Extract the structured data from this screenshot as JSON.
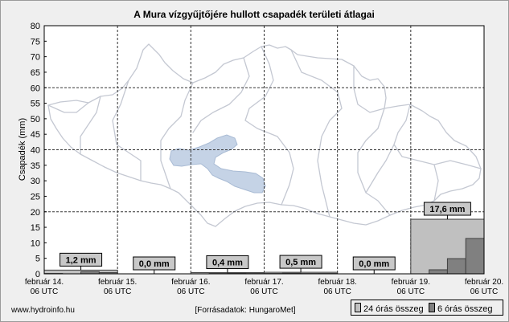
{
  "chart_data": {
    "type": "bar",
    "title": "A Mura vízgyűjtőjére hullott csapadék területi átlagai",
    "ylabel": "Csapadék (mm)",
    "ylim": [
      0,
      80
    ],
    "yticks": [
      0,
      5,
      10,
      15,
      20,
      25,
      30,
      35,
      40,
      45,
      50,
      55,
      60,
      65,
      70,
      75,
      80
    ],
    "x_ticks": [
      {
        "date": "február 14.",
        "time": "06 UTC"
      },
      {
        "date": "február 15.",
        "time": "06 UTC"
      },
      {
        "date": "február 16.",
        "time": "06 UTC"
      },
      {
        "date": "február 17.",
        "time": "06 UTC"
      },
      {
        "date": "február 18.",
        "time": "06 UTC"
      },
      {
        "date": "február 19.",
        "time": "06 UTC"
      },
      {
        "date": "február 20.",
        "time": "06 UTC"
      }
    ],
    "series": [
      {
        "name": "24 órás összeg",
        "values": [
          1.2,
          0.0,
          0.4,
          0.5,
          0.0,
          17.6
        ],
        "value_labels": [
          "1,2 mm",
          "0,0 mm",
          "0,4 mm",
          "0,5 mm",
          "0,0 mm",
          "17,6 mm"
        ]
      },
      {
        "name": "6 órás összeg",
        "values": [
          0.1,
          0.0,
          0.7,
          0.4,
          0.0,
          0.0,
          0.0,
          0.0,
          0.0,
          0.1,
          0.2,
          0.1,
          0.1,
          0.2,
          0.1,
          0.1,
          0.0,
          0.0,
          0.0,
          0.0,
          0.0,
          1.3,
          4.9,
          11.4
        ]
      }
    ],
    "grid": true,
    "legend": "bottom-right",
    "colors": {
      "bar_24h": "#c0c0c0",
      "bar_6h": "#808080",
      "bar_outline": "#404040",
      "label_box": "#c8c8c8"
    }
  },
  "footer": {
    "site": "www.hydroinfo.hu",
    "source": "[Forrásadatok: HungaroMet]"
  }
}
